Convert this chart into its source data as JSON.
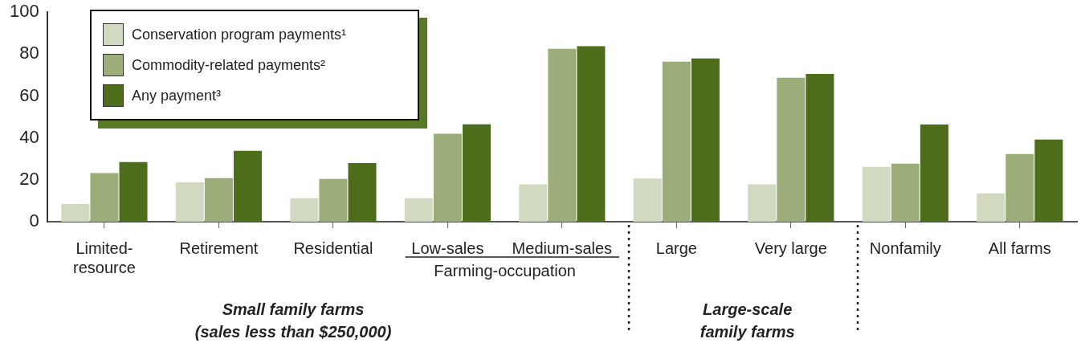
{
  "chart_data": {
    "type": "bar",
    "categories": [
      "Limited-resource",
      "Retirement",
      "Residential",
      "Low-sales",
      "Medium-sales",
      "Large",
      "Very large",
      "Nonfamily",
      "All farms"
    ],
    "series": [
      {
        "name": "Conservation program payments¹",
        "color": "#d1d9c0",
        "values": [
          8.4,
          18.8,
          11.2,
          11.2,
          17.8,
          20.6,
          17.8,
          26.2,
          13.5
        ]
      },
      {
        "name": "Commodity-related payments²",
        "color": "#9dad7a",
        "values": [
          23.2,
          20.8,
          20.4,
          42.0,
          82.5,
          76.4,
          68.7,
          27.7,
          32.3
        ]
      },
      {
        "name": "Any payment³",
        "color": "#4e6d1a",
        "values": [
          28.5,
          33.8,
          28.0,
          46.5,
          83.8,
          77.9,
          70.6,
          46.4,
          39.2
        ]
      }
    ],
    "ylim": [
      0,
      100
    ],
    "yticks": [
      0,
      20,
      40,
      60,
      80,
      100
    ],
    "grid": false,
    "legend": "top left",
    "annotations": [
      "Farming-occupation",
      "Small family farms",
      "(sales less than $250,000)",
      "Large-scale",
      "family farms"
    ]
  }
}
